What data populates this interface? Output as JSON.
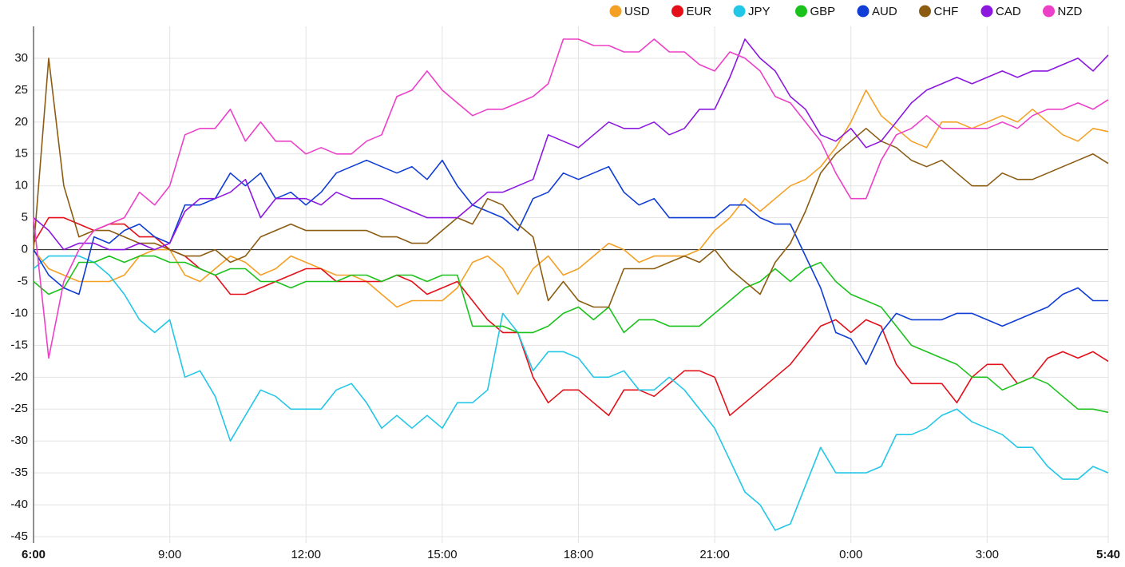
{
  "chart_data": {
    "type": "line",
    "x": [
      "6:00",
      "6:20",
      "6:40",
      "7:00",
      "7:20",
      "7:40",
      "8:00",
      "8:20",
      "8:40",
      "9:00",
      "9:20",
      "9:40",
      "10:00",
      "10:20",
      "10:40",
      "11:00",
      "11:20",
      "11:40",
      "12:00",
      "12:20",
      "12:40",
      "13:00",
      "13:20",
      "13:40",
      "14:00",
      "14:20",
      "14:40",
      "15:00",
      "15:20",
      "15:40",
      "16:00",
      "16:20",
      "16:40",
      "17:00",
      "17:20",
      "17:40",
      "18:00",
      "18:20",
      "18:40",
      "19:00",
      "19:20",
      "19:40",
      "20:00",
      "20:20",
      "20:40",
      "21:00",
      "21:20",
      "21:40",
      "22:00",
      "22:20",
      "22:40",
      "23:00",
      "23:20",
      "23:40",
      "0:00",
      "0:20",
      "0:40",
      "1:00",
      "1:20",
      "1:40",
      "2:00",
      "2:20",
      "2:40",
      "3:00",
      "3:20",
      "3:40",
      "4:00",
      "4:20",
      "4:40",
      "5:00",
      "5:20",
      "5:40"
    ],
    "xticks": [
      "6:00",
      "9:00",
      "12:00",
      "15:00",
      "18:00",
      "21:00",
      "0:00",
      "3:00",
      "5:40"
    ],
    "ylim": [
      -46,
      35
    ],
    "yticks": [
      -45,
      -40,
      -35,
      -30,
      -25,
      -20,
      -15,
      -10,
      -5,
      0,
      5,
      10,
      15,
      20,
      25,
      30
    ],
    "grid": true,
    "legend": "top-right",
    "series": [
      {
        "name": "USD",
        "color": "#f4a025",
        "values": [
          0,
          -3,
          -4,
          -5,
          -5,
          -5,
          -4,
          -1,
          0,
          0,
          -4,
          -5,
          -3,
          -1,
          -2,
          -4,
          -3,
          -1,
          -2,
          -3,
          -4,
          -4,
          -5,
          -7,
          -9,
          -8,
          -8,
          -8,
          -6,
          -2,
          -1,
          -3,
          -7,
          -3,
          -1,
          -4,
          -3,
          -1,
          1,
          0,
          -2,
          -1,
          -1,
          -1,
          0,
          3,
          5,
          8,
          6,
          8,
          10,
          11,
          13,
          16,
          20,
          25,
          21,
          19,
          17,
          16,
          20,
          20,
          19,
          20,
          21,
          20,
          22,
          20,
          18,
          17,
          19,
          18.5
        ]
      },
      {
        "name": "EUR",
        "color": "#e3101a",
        "values": [
          1,
          5,
          5,
          4,
          3,
          4,
          4,
          2,
          2,
          0,
          -1,
          -3,
          -4,
          -7,
          -7,
          -6,
          -5,
          -4,
          -3,
          -3,
          -5,
          -5,
          -5,
          -5,
          -4,
          -5,
          -7,
          -6,
          -5,
          -8,
          -11,
          -13,
          -13,
          -20,
          -24,
          -22,
          -22,
          -24,
          -26,
          -22,
          -22,
          -23,
          -21,
          -19,
          -19,
          -20,
          -26,
          -24,
          -22,
          -20,
          -18,
          -15,
          -12,
          -11,
          -13,
          -11,
          -12,
          -18,
          -21,
          -21,
          -21,
          -24,
          -20,
          -18,
          -18,
          -21,
          -20,
          -17,
          -16,
          -17,
          -16,
          -17.5
        ]
      },
      {
        "name": "JPY",
        "color": "#22c6e6",
        "values": [
          -3,
          -1,
          -1,
          -1,
          -2,
          -4,
          -7,
          -11,
          -13,
          -11,
          -20,
          -19,
          -23,
          -30,
          -26,
          -22,
          -23,
          -25,
          -25,
          -25,
          -22,
          -21,
          -24,
          -28,
          -26,
          -28,
          -26,
          -28,
          -24,
          -24,
          -22,
          -10,
          -13,
          -19,
          -16,
          -16,
          -17,
          -20,
          -20,
          -19,
          -22,
          -22,
          -20,
          -22,
          -25,
          -28,
          -33,
          -38,
          -40,
          -44,
          -43,
          -37,
          -31,
          -35,
          -35,
          -35,
          -34,
          -29,
          -29,
          -28,
          -26,
          -25,
          -27,
          -28,
          -29,
          -31,
          -31,
          -34,
          -36,
          -36,
          -34,
          -35
        ]
      },
      {
        "name": "GBP",
        "color": "#1cc21c",
        "values": [
          -5,
          -7,
          -6,
          -2,
          -2,
          -1,
          -2,
          -1,
          -1,
          -2,
          -2,
          -3,
          -4,
          -3,
          -3,
          -5,
          -5,
          -6,
          -5,
          -5,
          -5,
          -4,
          -4,
          -5,
          -4,
          -4,
          -5,
          -4,
          -4,
          -12,
          -12,
          -12,
          -13,
          -13,
          -12,
          -10,
          -9,
          -11,
          -9,
          -13,
          -11,
          -11,
          -12,
          -12,
          -12,
          -10,
          -8,
          -6,
          -5,
          -3,
          -5,
          -3,
          -2,
          -5,
          -7,
          -8,
          -9,
          -12,
          -15,
          -16,
          -17,
          -18,
          -20,
          -20,
          -22,
          -21,
          -20,
          -21,
          -23,
          -25,
          -25,
          -25.5
        ]
      },
      {
        "name": "AUD",
        "color": "#0f3dd6",
        "values": [
          0,
          -4,
          -6,
          -7,
          2,
          1,
          3,
          4,
          2,
          1,
          7,
          7,
          8,
          12,
          10,
          12,
          8,
          9,
          7,
          9,
          12,
          13,
          14,
          13,
          12,
          13,
          11,
          14,
          10,
          7,
          6,
          5,
          3,
          8,
          9,
          12,
          11,
          12,
          13,
          9,
          7,
          8,
          5,
          5,
          5,
          5,
          7,
          7,
          5,
          4,
          4,
          -1,
          -6,
          -13,
          -14,
          -18,
          -13,
          -10,
          -11,
          -11,
          -11,
          -10,
          -10,
          -11,
          -12,
          -11,
          -10,
          -9,
          -7,
          -6,
          -8,
          -8
        ]
      },
      {
        "name": "CHF",
        "color": "#8b5c12",
        "values": [
          0,
          30,
          10,
          2,
          3,
          3,
          2,
          1,
          1,
          0,
          -1,
          -1,
          0,
          -2,
          -1,
          2,
          3,
          4,
          3,
          3,
          3,
          3,
          3,
          2,
          2,
          1,
          1,
          3,
          5,
          4,
          8,
          7,
          4,
          2,
          -8,
          -5,
          -8,
          -9,
          -9,
          -3,
          -3,
          -3,
          -2,
          -1,
          -2,
          0,
          -3,
          -5,
          -7,
          -2,
          1,
          6,
          12,
          15,
          17,
          19,
          17,
          16,
          14,
          13,
          14,
          12,
          10,
          10,
          12,
          11,
          11,
          12,
          13,
          14,
          15,
          13.5
        ]
      },
      {
        "name": "CAD",
        "color": "#8c18e0",
        "values": [
          5,
          3,
          0,
          1,
          1,
          0,
          0,
          1,
          0,
          1,
          6,
          8,
          8,
          9,
          11,
          5,
          8,
          8,
          8,
          7,
          9,
          8,
          8,
          8,
          7,
          6,
          5,
          5,
          5,
          7,
          9,
          9,
          10,
          11,
          18,
          17,
          16,
          18,
          20,
          19,
          19,
          20,
          18,
          19,
          22,
          22,
          27,
          33,
          30,
          28,
          24,
          22,
          18,
          17,
          19,
          16,
          17,
          20,
          23,
          25,
          26,
          27,
          26,
          27,
          28,
          27,
          28,
          28,
          29,
          30,
          28,
          30.5
        ]
      },
      {
        "name": "NZD",
        "color": "#ec40c8",
        "values": [
          5,
          -17,
          -5,
          0,
          3,
          4,
          5,
          9,
          7,
          10,
          18,
          19,
          19,
          22,
          17,
          20,
          17,
          17,
          15,
          16,
          15,
          15,
          17,
          18,
          24,
          25,
          28,
          25,
          23,
          21,
          22,
          22,
          23,
          24,
          26,
          33,
          33,
          32,
          32,
          31,
          31,
          33,
          31,
          31,
          29,
          28,
          31,
          30,
          28,
          24,
          23,
          20,
          17,
          12,
          8,
          8,
          14,
          18,
          19,
          21,
          19,
          19,
          19,
          19,
          20,
          19,
          21,
          22,
          22,
          23,
          22,
          23.5
        ]
      }
    ]
  }
}
